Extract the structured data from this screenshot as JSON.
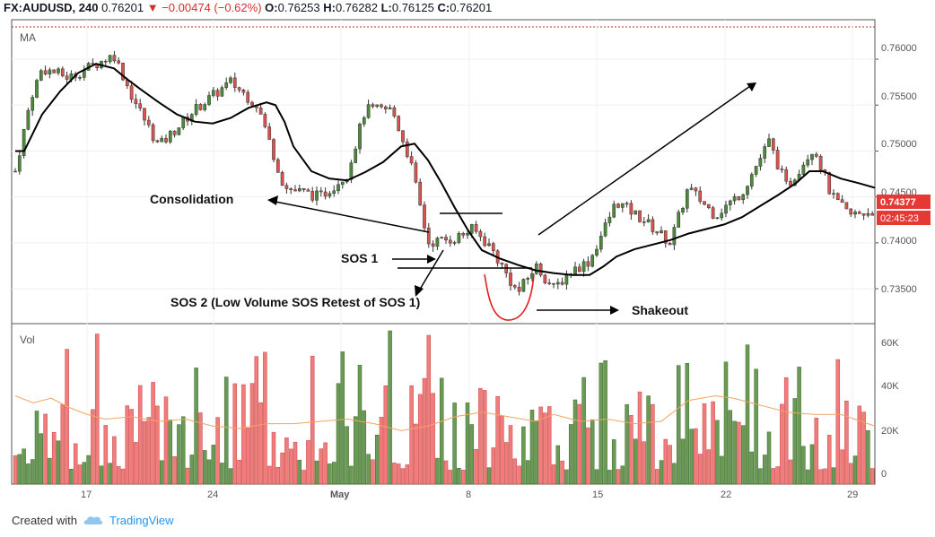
{
  "header": {
    "symbol": "FX:AUDUSD, 240",
    "last": "0.76201",
    "change_arrow": "▼",
    "change": "−0.00474 (−0.62%)",
    "o_label": "O:",
    "o": "0.76253",
    "h_label": "H:",
    "h": "0.76282",
    "l_label": "L:",
    "l": "0.76125",
    "c_label": "C:",
    "c": "0.76201"
  },
  "footer": {
    "created_with": "Created with",
    "brand": "TradingView"
  },
  "colors": {
    "up": "#4a8a3a",
    "down": "#d9534f",
    "up_vol": "#6a9a55",
    "down_vol": "#f07c7c",
    "ma": "#000000",
    "vol_ma": "#f4a460",
    "annotation_curve": "#e02020",
    "price_badge": "#e53935"
  },
  "chart_data": {
    "type": "candlestick",
    "price_axis": {
      "ticks": [
        "0.76000",
        "0.75500",
        "0.75000",
        "0.74500",
        "0.74000",
        "0.73500"
      ],
      "range": [
        0.7312,
        0.7643
      ]
    },
    "price_badge": "0.74377",
    "time_badge": "02:45:23",
    "x_ticks": [
      "17",
      "24",
      "May",
      "8",
      "15",
      "22",
      "29"
    ],
    "ma_label": "MA",
    "vol_label": "Vol",
    "vol_axis": {
      "ticks": [
        "60K",
        "40K",
        "20K",
        "0"
      ],
      "max": 66000
    },
    "annotations": {
      "consolidation": "Consolidation",
      "sos1": "SOS 1",
      "sos2": "SOS 2 (Low Volume SOS Retest of SOS 1)",
      "shakeout": "Shakeout"
    },
    "ma_points": [
      [
        0,
        0.75
      ],
      [
        10,
        0.75
      ],
      [
        30,
        0.754
      ],
      [
        50,
        0.7565
      ],
      [
        70,
        0.7585
      ],
      [
        90,
        0.7595
      ],
      [
        110,
        0.759
      ],
      [
        125,
        0.7578
      ],
      [
        140,
        0.7567
      ],
      [
        160,
        0.7553
      ],
      [
        180,
        0.754
      ],
      [
        200,
        0.7532
      ],
      [
        220,
        0.753
      ],
      [
        240,
        0.7536
      ],
      [
        260,
        0.7547
      ],
      [
        280,
        0.7553
      ],
      [
        290,
        0.755
      ],
      [
        300,
        0.7532
      ],
      [
        310,
        0.7505
      ],
      [
        330,
        0.7478
      ],
      [
        350,
        0.747
      ],
      [
        370,
        0.7468
      ],
      [
        390,
        0.7477
      ],
      [
        410,
        0.7488
      ],
      [
        430,
        0.7505
      ],
      [
        445,
        0.7508
      ],
      [
        460,
        0.749
      ],
      [
        475,
        0.7465
      ],
      [
        490,
        0.7438
      ],
      [
        505,
        0.7413
      ],
      [
        520,
        0.7392
      ],
      [
        540,
        0.7383
      ],
      [
        560,
        0.7376
      ],
      [
        580,
        0.737
      ],
      [
        600,
        0.7367
      ],
      [
        620,
        0.7365
      ],
      [
        640,
        0.7365
      ],
      [
        655,
        0.7374
      ],
      [
        670,
        0.7385
      ],
      [
        690,
        0.7393
      ],
      [
        710,
        0.7398
      ],
      [
        730,
        0.7403
      ],
      [
        750,
        0.741
      ],
      [
        770,
        0.7415
      ],
      [
        790,
        0.742
      ],
      [
        810,
        0.7428
      ],
      [
        830,
        0.744
      ],
      [
        850,
        0.7452
      ],
      [
        870,
        0.7465
      ],
      [
        885,
        0.7478
      ],
      [
        900,
        0.7478
      ],
      [
        920,
        0.747
      ],
      [
        940,
        0.7465
      ],
      [
        958,
        0.746
      ]
    ],
    "vol_ma_points": [
      [
        0,
        38000
      ],
      [
        20,
        35000
      ],
      [
        40,
        37000
      ],
      [
        60,
        33000
      ],
      [
        80,
        30000
      ],
      [
        100,
        28000
      ],
      [
        130,
        29000
      ],
      [
        160,
        27000
      ],
      [
        190,
        28000
      ],
      [
        220,
        25000
      ],
      [
        250,
        24000
      ],
      [
        280,
        26000
      ],
      [
        310,
        26000
      ],
      [
        340,
        27000
      ],
      [
        370,
        28000
      ],
      [
        400,
        26000
      ],
      [
        430,
        23000
      ],
      [
        460,
        25000
      ],
      [
        490,
        29000
      ],
      [
        520,
        31000
      ],
      [
        550,
        29000
      ],
      [
        580,
        27000
      ],
      [
        600,
        30000
      ],
      [
        630,
        27000
      ],
      [
        660,
        28000
      ],
      [
        690,
        26000
      ],
      [
        720,
        27000
      ],
      [
        750,
        36000
      ],
      [
        780,
        38000
      ],
      [
        800,
        37000
      ],
      [
        830,
        34000
      ],
      [
        860,
        31000
      ],
      [
        890,
        30000
      ],
      [
        920,
        30000
      ],
      [
        958,
        25000
      ]
    ]
  }
}
